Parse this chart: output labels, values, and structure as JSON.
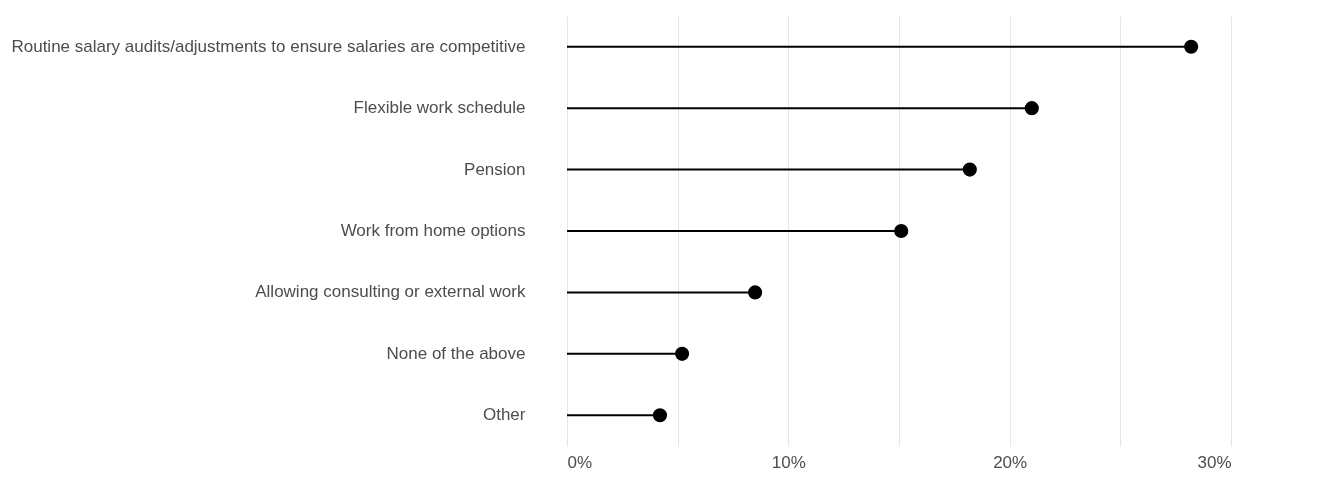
{
  "chart_data": {
    "type": "lollipop",
    "orientation": "horizontal",
    "categories": [
      "Routine salary audits/adjustments to ensure salaries are competitive",
      "Flexible work schedule",
      "Pension",
      "Work from home options",
      "Allowing consulting or external work",
      "None of the above",
      "Other"
    ],
    "values": [
      28.2,
      21.0,
      18.2,
      15.1,
      8.5,
      5.2,
      4.2
    ],
    "color": "#000000",
    "marker": "circle",
    "xlim": [
      0,
      30
    ],
    "xticks": [
      {
        "value": 0,
        "label": "0%"
      },
      {
        "value": 5,
        "label": null
      },
      {
        "value": 10,
        "label": "10%"
      },
      {
        "value": 15,
        "label": null
      },
      {
        "value": 20,
        "label": "20%"
      },
      {
        "value": 25,
        "label": null
      },
      {
        "value": 30,
        "label": "30%"
      }
    ],
    "grid": "x"
  }
}
